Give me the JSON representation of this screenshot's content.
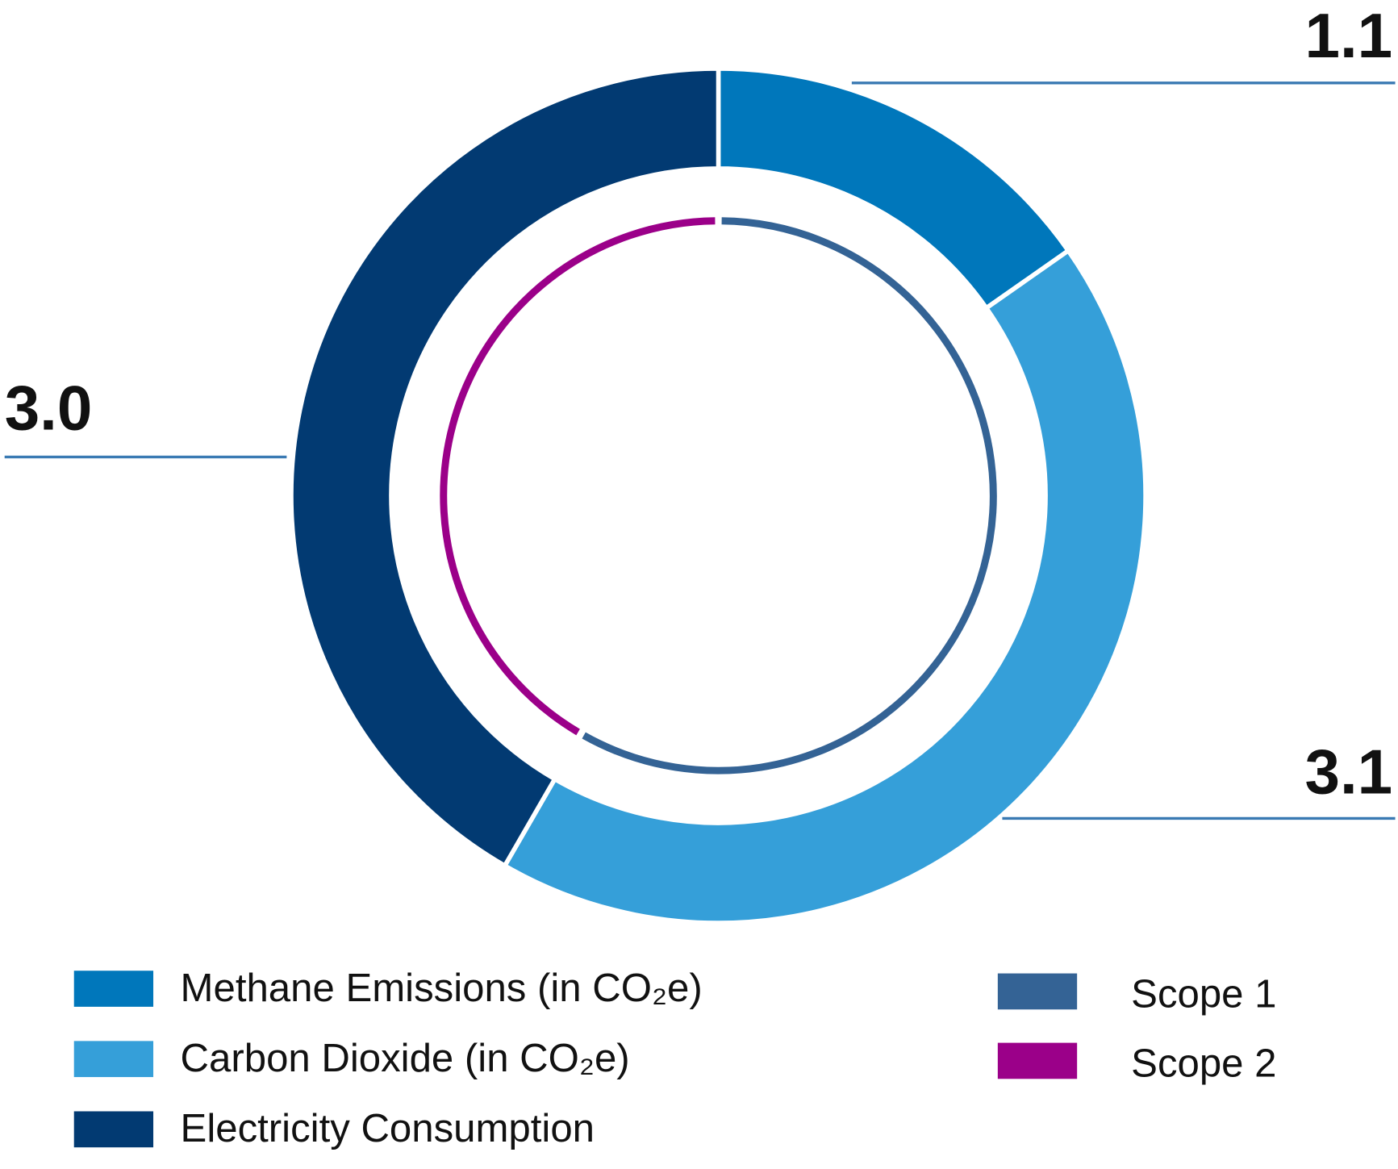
{
  "chart_data": {
    "type": "donut",
    "rings": [
      {
        "categories": [
          "Methane Emissions (in CO₂e)",
          "Carbon Dioxide (in CO₂e)",
          "Electricity Consumption"
        ],
        "colors": [
          "#0077bb",
          "#359fd9",
          "#023a72"
        ],
        "values": [
          1.1,
          3.1,
          3.0
        ],
        "value_labels": [
          "1.1",
          "3.1",
          "3.0"
        ]
      },
      {
        "categories": [
          "Scope 1",
          "Scope 2"
        ],
        "colors": [
          "#346395",
          "#9b0089"
        ],
        "values": [
          4.2,
          3.0
        ]
      }
    ]
  }
}
